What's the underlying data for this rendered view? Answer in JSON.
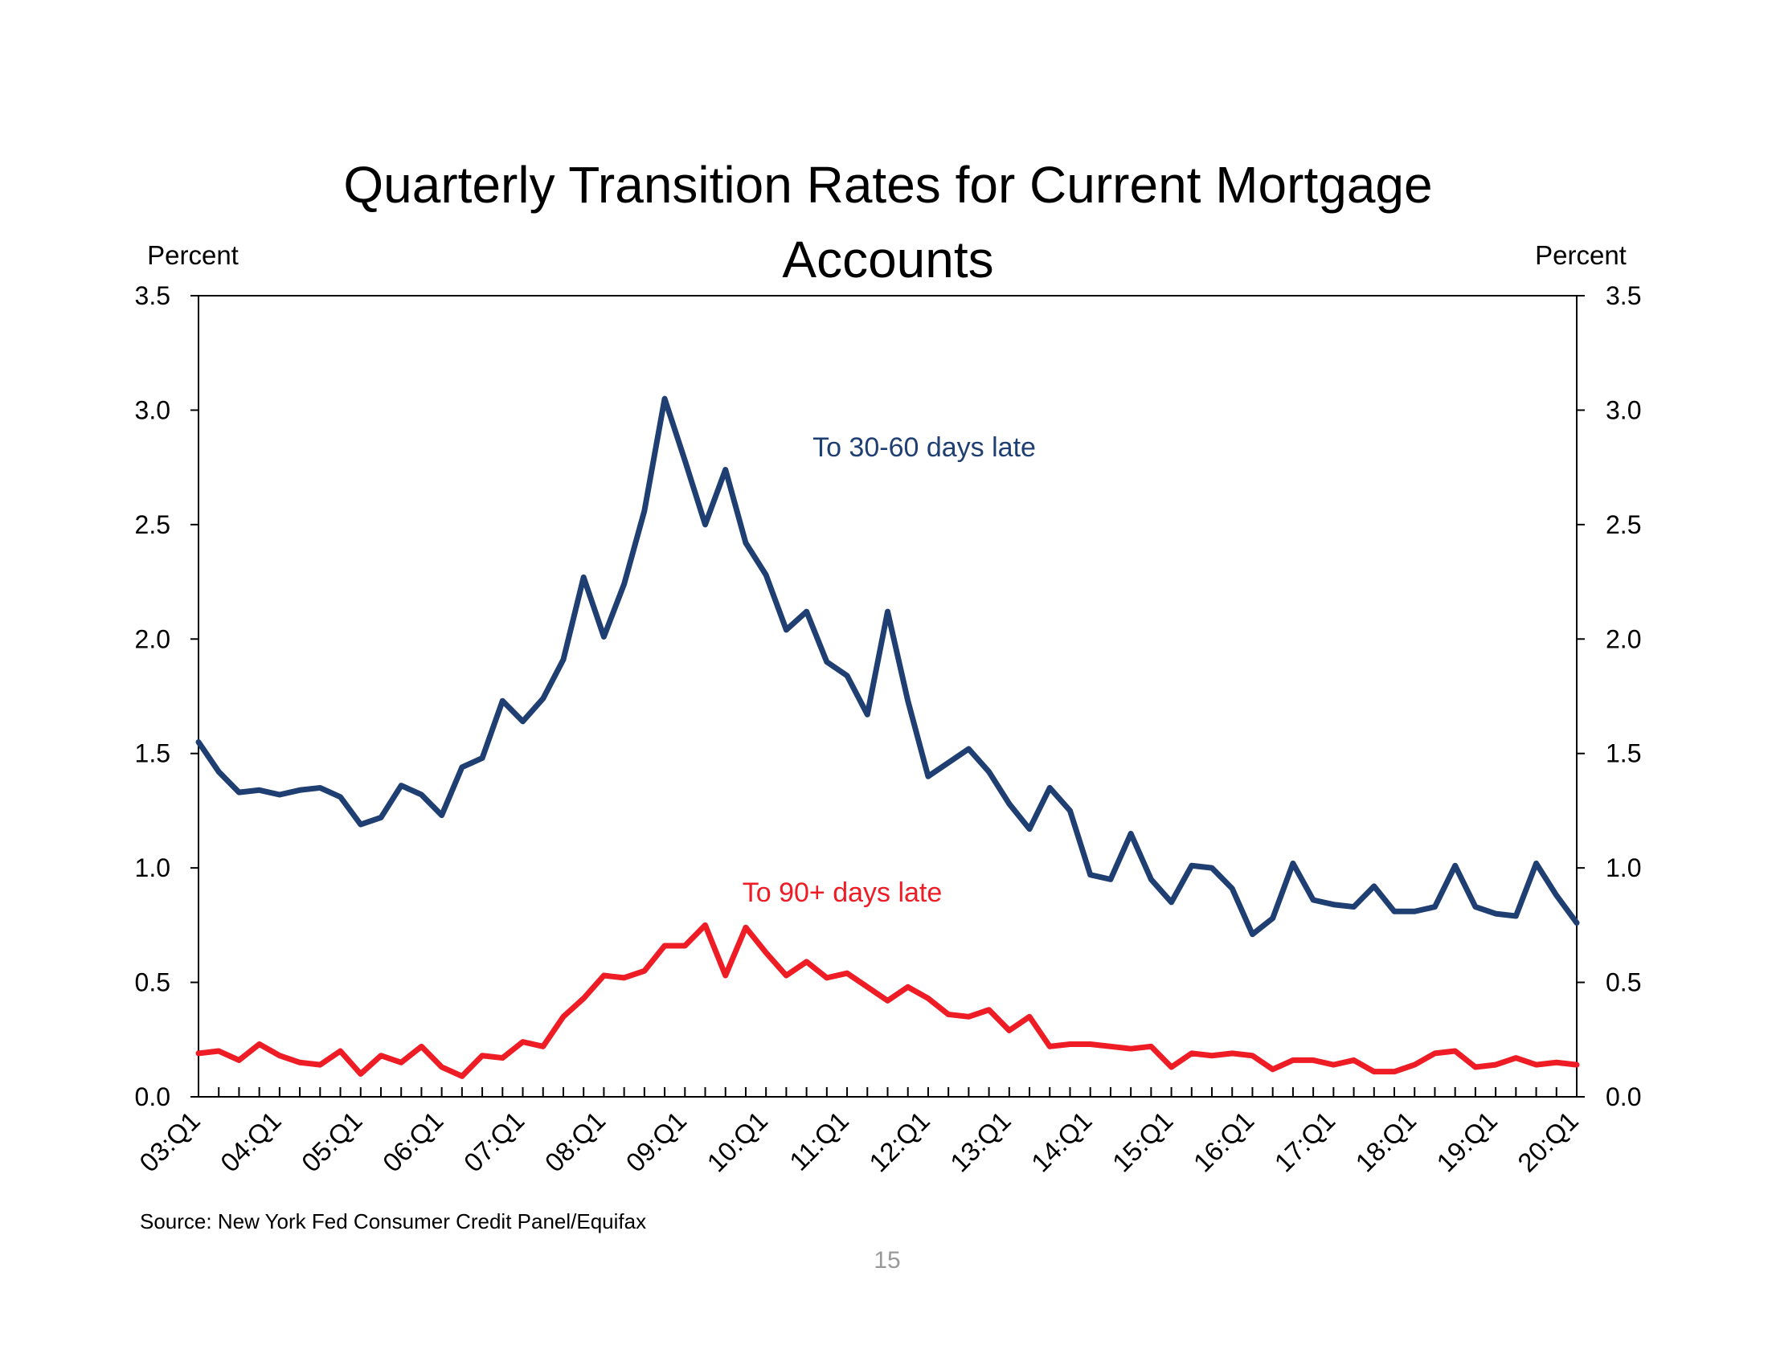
{
  "chart_data": {
    "type": "line",
    "title_lines": [
      "Quarterly Transition Rates for Current Mortgage",
      "Accounts"
    ],
    "y_unit_left": "Percent",
    "y_unit_right": "Percent",
    "ylim": [
      0,
      3.5
    ],
    "y_ticks": [
      "0.0",
      "0.5",
      "1.0",
      "1.5",
      "2.0",
      "2.5",
      "3.0",
      "3.5"
    ],
    "x_ticks": [
      "03:Q1",
      "04:Q1",
      "05:Q1",
      "06:Q1",
      "07:Q1",
      "08:Q1",
      "09:Q1",
      "10:Q1",
      "11:Q1",
      "12:Q1",
      "13:Q1",
      "14:Q1",
      "15:Q1",
      "16:Q1",
      "17:Q1",
      "18:Q1",
      "19:Q1",
      "20:Q1"
    ],
    "period": [
      "03:Q1",
      "20:Q1"
    ],
    "grid": false,
    "series": [
      {
        "name": "To 30-60 days late",
        "color": "#1F3F73",
        "values": [
          1.55,
          1.42,
          1.33,
          1.34,
          1.32,
          1.34,
          1.35,
          1.31,
          1.19,
          1.22,
          1.36,
          1.32,
          1.23,
          1.44,
          1.48,
          1.73,
          1.64,
          1.74,
          1.91,
          2.27,
          2.01,
          2.24,
          2.56,
          3.05,
          2.78,
          2.5,
          2.74,
          2.42,
          2.28,
          2.04,
          2.12,
          1.9,
          1.84,
          1.67,
          2.12,
          1.73,
          1.4,
          1.46,
          1.52,
          1.42,
          1.28,
          1.17,
          1.35,
          1.25,
          0.97,
          0.95,
          1.15,
          0.95,
          0.85,
          1.01,
          1.0,
          0.91,
          0.71,
          0.78,
          1.02,
          0.86,
          0.84,
          0.83,
          0.92,
          0.81,
          0.81,
          0.83,
          1.01,
          0.83,
          0.8,
          0.79,
          1.02,
          0.88,
          0.76
        ]
      },
      {
        "name": "To 90+ days late",
        "color": "#EE1C25",
        "values": [
          0.19,
          0.2,
          0.16,
          0.23,
          0.18,
          0.15,
          0.14,
          0.2,
          0.1,
          0.18,
          0.15,
          0.22,
          0.13,
          0.09,
          0.18,
          0.17,
          0.24,
          0.22,
          0.35,
          0.43,
          0.53,
          0.52,
          0.55,
          0.66,
          0.66,
          0.75,
          0.53,
          0.74,
          0.63,
          0.53,
          0.59,
          0.52,
          0.54,
          0.48,
          0.42,
          0.48,
          0.43,
          0.36,
          0.35,
          0.38,
          0.29,
          0.35,
          0.22,
          0.23,
          0.23,
          0.22,
          0.21,
          0.22,
          0.13,
          0.19,
          0.18,
          0.19,
          0.18,
          0.12,
          0.16,
          0.16,
          0.14,
          0.16,
          0.11,
          0.11,
          0.14,
          0.19,
          0.2,
          0.13,
          0.14,
          0.17,
          0.14,
          0.15,
          0.14
        ]
      }
    ]
  },
  "source_note": "Source: New York Fed Consumer Credit Panel/Equifax",
  "page_number": "15"
}
